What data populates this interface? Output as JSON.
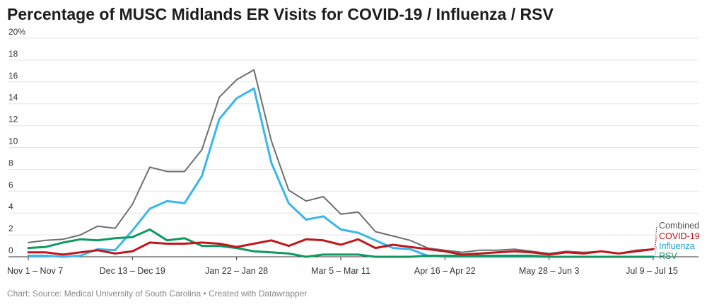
{
  "chart_data": {
    "type": "line",
    "title": "Percentage of MUSC Midlands ER Visits for COVID-19 / Influenza / RSV",
    "source": "Chart: Source: Medical University of South Carolina • Created with Datawrapper",
    "x_tick_labels": [
      "Nov 1 – Nov 7",
      "Dec 13 – Dec 19",
      "Jan 22 – Jan 28",
      "Mar 5 – Mar 11",
      "Apr 16 – Apr 22",
      "May 28 – Jun 3",
      "Jul 9 – Jul 15"
    ],
    "x_tick_index": [
      0,
      6,
      12,
      18,
      24,
      30,
      36
    ],
    "y_ticks": [
      "20%",
      "18",
      "16",
      "14",
      "12",
      "10",
      "8",
      "6",
      "4",
      "2",
      "0"
    ],
    "ylim": [
      0,
      20
    ],
    "grid": true,
    "legend_placement": "end labels right",
    "series": [
      {
        "name": "Combined",
        "color": "#6e6e6e",
        "values": [
          1.3,
          1.5,
          1.6,
          2.0,
          2.8,
          2.6,
          4.8,
          8.2,
          7.8,
          7.8,
          9.8,
          14.6,
          16.2,
          17.1,
          10.6,
          6.1,
          5.1,
          5.5,
          3.9,
          4.1,
          2.3,
          1.9,
          1.5,
          0.8,
          0.6,
          0.4,
          0.6,
          0.6,
          0.7,
          0.5,
          0.3,
          0.5,
          0.4,
          0.5,
          0.3,
          0.6,
          0.7
        ]
      },
      {
        "name": "COVID-19",
        "color": "#c0171d",
        "values": [
          0.4,
          0.4,
          0.2,
          0.4,
          0.6,
          0.3,
          0.5,
          1.3,
          1.2,
          1.2,
          1.3,
          1.2,
          0.9,
          1.2,
          1.5,
          1.0,
          1.6,
          1.5,
          1.1,
          1.6,
          0.8,
          1.1,
          0.9,
          0.7,
          0.5,
          0.2,
          0.3,
          0.4,
          0.5,
          0.4,
          0.2,
          0.4,
          0.3,
          0.5,
          0.3,
          0.5,
          0.7
        ]
      },
      {
        "name": "Influenza",
        "color": "#38b6ed",
        "values": [
          0.1,
          0.1,
          0.0,
          0.1,
          0.7,
          0.6,
          2.4,
          4.4,
          5.1,
          4.9,
          7.4,
          12.6,
          14.5,
          15.4,
          8.6,
          4.9,
          3.4,
          3.7,
          2.5,
          2.2,
          1.5,
          0.8,
          0.7,
          0.1,
          0.0,
          0.0,
          0.0,
          0.0,
          0.0,
          0.0,
          0.0,
          0.0,
          0.0,
          0.0,
          0.0,
          0.0,
          0.0
        ]
      },
      {
        "name": "RSV",
        "color": "#0d9960",
        "values": [
          0.8,
          0.9,
          1.3,
          1.6,
          1.5,
          1.7,
          1.8,
          2.5,
          1.5,
          1.7,
          1.0,
          1.0,
          0.8,
          0.5,
          0.4,
          0.3,
          0.0,
          0.2,
          0.2,
          0.2,
          0.0,
          0.0,
          0.0,
          0.1,
          0.1,
          0.1,
          0.1,
          0.1,
          0.1,
          0.1,
          0.0,
          0.0,
          0.0,
          0.0,
          0.0,
          0.0,
          0.0
        ]
      }
    ]
  }
}
